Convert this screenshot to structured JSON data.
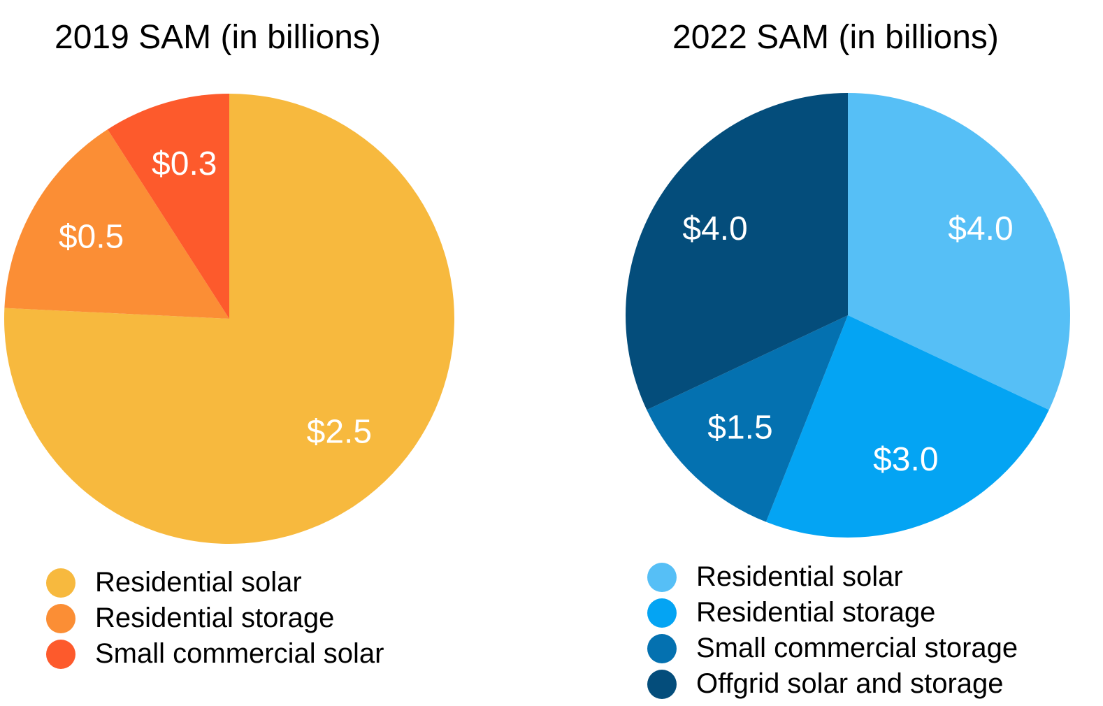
{
  "chart_data": [
    {
      "type": "pie",
      "title": "2019 SAM (in billions)",
      "slices": [
        {
          "label": "Residential solar",
          "value": 2.5,
          "display": "$2.5",
          "color": "#F7B93E"
        },
        {
          "label": "Residential storage",
          "value": 0.5,
          "display": "$0.5",
          "color": "#FB8E35"
        },
        {
          "label": "Small commercial solar",
          "value": 0.3,
          "display": "$0.3",
          "color": "#FD5A2C"
        }
      ],
      "legend_position": "bottom"
    },
    {
      "type": "pie",
      "title": "2022 SAM (in billions)",
      "slices": [
        {
          "label": "Residential solar",
          "value": 4.0,
          "display": "$4.0",
          "color": "#56BFF6"
        },
        {
          "label": "Residential storage",
          "value": 3.0,
          "display": "$3.0",
          "color": "#04A4F3"
        },
        {
          "label": "Small commercial storage",
          "value": 1.5,
          "display": "$1.5",
          "color": "#0471B0"
        },
        {
          "label": "Offgrid solar and storage",
          "value": 4.0,
          "display": "$4.0",
          "color": "#044D7B"
        }
      ],
      "legend_position": "bottom"
    }
  ]
}
